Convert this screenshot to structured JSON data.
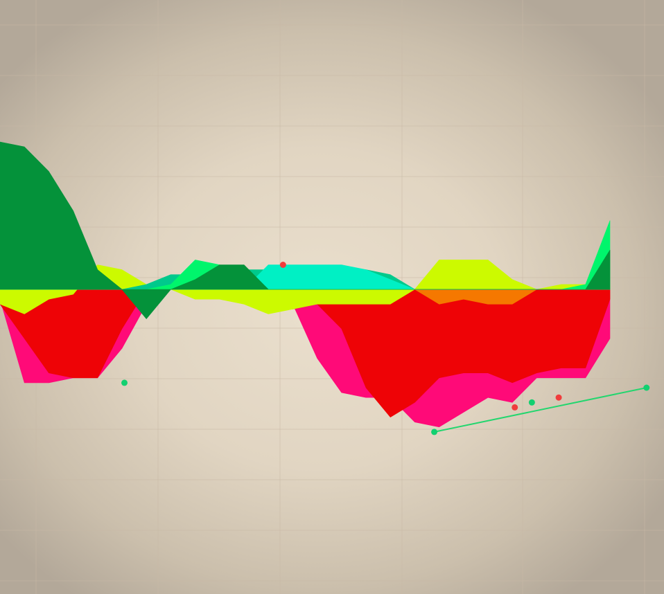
{
  "chart_data": {
    "type": "area",
    "title": "",
    "xlabel": "",
    "ylabel": "",
    "grid": true,
    "baseline": 0,
    "xlim": [
      0,
      25
    ],
    "ylim": [
      -5.5,
      5.5
    ],
    "categories": [
      0,
      1,
      2,
      3,
      4,
      5,
      6,
      7,
      8,
      9,
      10,
      11,
      12,
      13,
      14,
      15,
      16,
      17,
      18,
      19,
      20,
      21,
      22,
      23,
      24,
      25
    ],
    "series": [
      {
        "color": "#ff0a78",
        "values": [
          -0.2,
          -1.9,
          -1.9,
          -1.8,
          -1.8,
          -1.2,
          -0.3,
          0,
          0,
          0,
          0,
          0,
          -0.3,
          -1.4,
          -2.1,
          -2.2,
          -2.2,
          -2.7,
          -2.8,
          -2.5,
          -2.2,
          -2.3,
          -1.8,
          -1.8,
          -1.8,
          -1.0
        ]
      },
      {
        "color": "#ee0306",
        "values": [
          -0.3,
          -1.0,
          -1.7,
          -1.8,
          -1.8,
          -0.8,
          0,
          0,
          0,
          0,
          0,
          0,
          -0.4,
          -0.3,
          -0.8,
          -2.0,
          -2.6,
          -2.3,
          -1.8,
          -1.7,
          -1.7,
          -1.9,
          -1.7,
          -1.6,
          -1.6,
          -0.2
        ]
      },
      {
        "color": "#ccfa00",
        "values": [
          -0.3,
          -0.5,
          -0.2,
          -0.1,
          0.5,
          0.4,
          0.1,
          0,
          -0.2,
          -0.2,
          -0.3,
          -0.5,
          -0.4,
          -0.3,
          -0.3,
          -0.3,
          -0.3,
          0,
          0.6,
          0.6,
          0.6,
          0.2,
          0,
          0.1,
          0.1,
          0.1
        ]
      },
      {
        "color": "#f57800",
        "values": [
          0,
          0,
          0,
          0,
          0,
          0,
          0,
          0,
          0,
          0,
          0,
          0,
          0,
          0,
          0,
          0,
          0,
          0,
          -0.3,
          -0.2,
          -0.3,
          -0.3,
          0,
          0,
          0,
          0
        ]
      },
      {
        "color": "#00c98c",
        "values": [
          0.3,
          0.3,
          0.3,
          0.3,
          0,
          0,
          0.1,
          0.3,
          0.3,
          0.4,
          0.4,
          0.4,
          0.4,
          0.4,
          0.4,
          0.4,
          0.3,
          0,
          0,
          0,
          0,
          0,
          0,
          0,
          0,
          0
        ]
      },
      {
        "color": "#00f0c4",
        "values": [
          0,
          0,
          0,
          0,
          0,
          0,
          0,
          0,
          0,
          0,
          0,
          0.5,
          0.5,
          0.5,
          0.5,
          0.4,
          0.2,
          0,
          0,
          0,
          0,
          0,
          0,
          0,
          0,
          0
        ]
      },
      {
        "color": "#00f56c",
        "values": [
          0,
          0,
          0,
          0,
          0,
          0,
          0,
          0.1,
          0.6,
          0.5,
          0.3,
          0,
          0,
          0,
          0,
          0,
          0,
          0,
          0,
          0,
          0,
          0,
          0,
          0,
          0.1,
          1.4
        ]
      },
      {
        "color": "#04923a",
        "values": [
          3.0,
          2.9,
          2.4,
          1.6,
          0.4,
          0,
          -0.6,
          0,
          0.2,
          0.5,
          0.5,
          0,
          0,
          0,
          0,
          0,
          0,
          0,
          0,
          0,
          0,
          0,
          0,
          0,
          0,
          0.8
        ]
      }
    ],
    "annotations": [
      {
        "type": "trend-line",
        "color": "#22d66e",
        "points": [
          [
            17.8,
            -2.9
          ],
          [
            26.5,
            -2.0
          ]
        ]
      },
      {
        "type": "marker",
        "color": "#12d070",
        "x": 5.1,
        "y": -1.9
      },
      {
        "type": "marker",
        "color": "#12d070",
        "x": 17.8,
        "y": -2.9
      },
      {
        "type": "marker",
        "color": "#12d070",
        "x": 21.8,
        "y": -2.3
      },
      {
        "type": "marker",
        "color": "#12d070",
        "x": 26.5,
        "y": -2.0
      },
      {
        "type": "marker",
        "color": "#f03c3c",
        "x": 11.6,
        "y": 0.5
      },
      {
        "type": "marker",
        "color": "#f03c3c",
        "x": 21.1,
        "y": -2.4
      },
      {
        "type": "marker",
        "color": "#f03c3c",
        "x": 22.9,
        "y": -2.2
      }
    ]
  }
}
